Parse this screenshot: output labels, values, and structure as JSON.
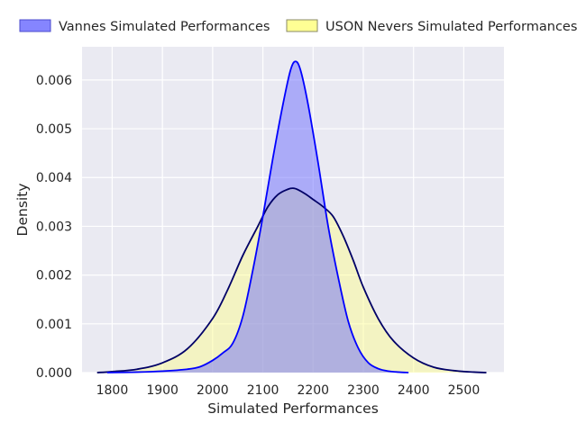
{
  "chart_data": {
    "type": "area",
    "xlabel": "Simulated Performances",
    "ylabel": "Density",
    "xlim": [
      1740,
      2580
    ],
    "ylim": [
      0,
      0.00668
    ],
    "xticks": [
      1800,
      1900,
      2000,
      2100,
      2200,
      2300,
      2400,
      2500
    ],
    "xtick_labels": [
      "1800",
      "1900",
      "2000",
      "2100",
      "2200",
      "2300",
      "2400",
      "2500"
    ],
    "yticks": [
      0,
      0.001,
      0.002,
      0.003,
      0.004,
      0.005,
      0.006
    ],
    "ytick_labels": [
      "0.000",
      "0.001",
      "0.002",
      "0.003",
      "0.004",
      "0.005",
      "0.006"
    ],
    "grid": true,
    "legend_position": "top",
    "series": [
      {
        "name": "Vannes Simulated Performances",
        "fill_color": "#6666ff",
        "line_color": "#0000ff",
        "x": [
          1790,
          1850,
          1900,
          1950,
          1975,
          2000,
          2020,
          2040,
          2060,
          2080,
          2100,
          2120,
          2140,
          2155,
          2165,
          2175,
          2190,
          2210,
          2230,
          2250,
          2270,
          2290,
          2310,
          2330,
          2350,
          2370,
          2390
        ],
        "y": [
          0,
          1e-05,
          3e-05,
          7e-05,
          0.00012,
          0.00025,
          0.0004,
          0.0006,
          0.00115,
          0.0021,
          0.0032,
          0.0044,
          0.0055,
          0.0062,
          0.00638,
          0.0062,
          0.0055,
          0.0043,
          0.003,
          0.00195,
          0.00105,
          0.0005,
          0.0002,
          8e-05,
          3e-05,
          1e-05,
          0
        ]
      },
      {
        "name": "USON Nevers Simulated Performances",
        "fill_color": "#ffff88",
        "line_color": "#000066",
        "x": [
          1770,
          1800,
          1850,
          1900,
          1950,
          2000,
          2030,
          2060,
          2090,
          2110,
          2130,
          2150,
          2160,
          2170,
          2185,
          2200,
          2220,
          2240,
          2260,
          2280,
          2300,
          2330,
          2360,
          2400,
          2440,
          2480,
          2520,
          2545
        ],
        "y": [
          0,
          2e-05,
          7e-05,
          0.0002,
          0.00049,
          0.00111,
          0.0017,
          0.0024,
          0.003,
          0.0034,
          0.00365,
          0.00376,
          0.00378,
          0.00375,
          0.00366,
          0.00355,
          0.0034,
          0.0032,
          0.0028,
          0.0023,
          0.00175,
          0.0011,
          0.00065,
          0.0003,
          0.00011,
          4e-05,
          1e-05,
          0
        ]
      }
    ]
  }
}
